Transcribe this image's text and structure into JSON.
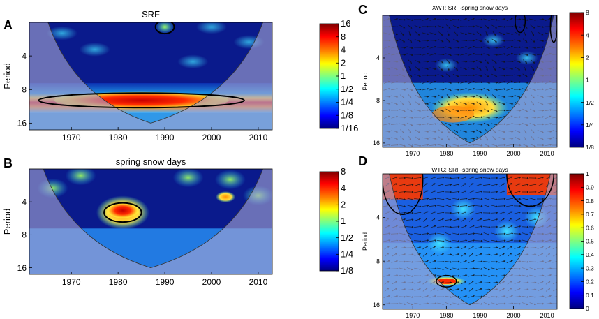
{
  "colors": {
    "coi_shade": "#a4a4d2",
    "deep_blue": "#0a1a8c",
    "sig_contour": "#000000",
    "arrow": "#111111",
    "colorbar_stops": [
      "#00007f",
      "#0000ff",
      "#0080ff",
      "#00ffff",
      "#80ff80",
      "#ffff00",
      "#ff8000",
      "#ff0000",
      "#7f0000"
    ]
  },
  "chart_data": [
    {
      "panel_letter": "A",
      "type": "heatmap",
      "subtype": "continuous wavelet transform",
      "title": "SRF",
      "ylabel": "Period",
      "xlabel": "",
      "xlim": [
        1961,
        2013
      ],
      "ylim_period_log2": [
        1,
        4.2
      ],
      "xticks": [
        "1970",
        "1980",
        "1990",
        "2000",
        "2010"
      ],
      "xtick_values": [
        1970,
        1980,
        1990,
        2000,
        2010
      ],
      "yticks": [
        "4",
        "8",
        "16"
      ],
      "ytick_values": [
        4,
        8,
        16
      ],
      "colorbar": [
        "16",
        "8",
        "4",
        "2",
        "1",
        "1/2",
        "1/4",
        "1/8",
        "1/16"
      ],
      "significant_regions": [
        {
          "year_center": 1990,
          "period": 2.2,
          "year_halfwidth": 2,
          "period_range": [
            1.9,
            2.5
          ]
        },
        {
          "year_center": 1985,
          "period": 10,
          "year_halfwidth": 22,
          "period_range": [
            8.5,
            11.5
          ]
        }
      ],
      "cone_of_influence": {
        "start_year": 1965,
        "end_year": 2011,
        "bottom_year": 1987,
        "max_period": 16
      }
    },
    {
      "panel_letter": "B",
      "type": "heatmap",
      "subtype": "continuous wavelet transform",
      "title": "spring snow days",
      "ylabel": "Period",
      "xlabel": "",
      "xlim": [
        1961,
        2013
      ],
      "ylim_period_log2": [
        1,
        4.2
      ],
      "xticks": [
        "1970",
        "1980",
        "1990",
        "2000",
        "2010"
      ],
      "xtick_values": [
        1970,
        1980,
        1990,
        2000,
        2010
      ],
      "yticks": [
        "4",
        "8",
        "16"
      ],
      "ytick_values": [
        4,
        8,
        16
      ],
      "colorbar": [
        "8",
        "4",
        "2",
        "1",
        "1/2",
        "1/4",
        "1/8"
      ],
      "significant_regions": [
        {
          "year_center": 1981,
          "period": 5,
          "year_halfwidth": 4,
          "period_range": [
            4,
            6
          ]
        }
      ],
      "cone_of_influence": {
        "start_year": 1964,
        "end_year": 2011,
        "bottom_year": 1987,
        "max_period": 16
      }
    },
    {
      "panel_letter": "C",
      "type": "heatmap",
      "subtype": "cross wavelet transform",
      "title": "XWT: SRF-spring snow days",
      "ylabel": "Period",
      "xlabel": "",
      "xlim": [
        1961,
        2013
      ],
      "ylim_period_log2": [
        1,
        4.1
      ],
      "xticks": [
        "1970",
        "1980",
        "1990",
        "2000",
        "2010"
      ],
      "xtick_values": [
        1970,
        1980,
        1990,
        2000,
        2010
      ],
      "yticks": [
        "4",
        "8",
        "16"
      ],
      "ytick_values": [
        4,
        8,
        16
      ],
      "colorbar": [
        "8",
        "4",
        "2",
        "1",
        "1/2",
        "1/4",
        "1/8"
      ],
      "significant_regions": [
        {
          "year_center": 2002,
          "period": 2.2,
          "year_halfwidth": 1.5,
          "period_range": [
            1.8,
            2.6
          ]
        },
        {
          "year_center": 2012,
          "period": 2.4,
          "year_halfwidth": 1,
          "period_range": [
            1.8,
            3
          ]
        }
      ],
      "phase_arrows": "present",
      "cone_of_influence": {
        "start_year": 1963,
        "end_year": 2012,
        "bottom_year": 1987,
        "max_period": 16
      }
    },
    {
      "panel_letter": "D",
      "type": "heatmap",
      "subtype": "wavelet coherence",
      "title": "WTC: SRF-spring snow days",
      "ylabel": "Period",
      "xlabel": "",
      "xlim": [
        1961,
        2013
      ],
      "ylim_period_log2": [
        1,
        4.1
      ],
      "xticks": [
        "1970",
        "1980",
        "1990",
        "2000",
        "2010"
      ],
      "xtick_values": [
        1970,
        1980,
        1990,
        2000,
        2010
      ],
      "yticks": [
        "4",
        "8",
        "16"
      ],
      "ytick_values": [
        4,
        8,
        16
      ],
      "colorbar": [
        "1",
        "0.9",
        "0.8",
        "0.7",
        "0.6",
        "0.5",
        "0.4",
        "0.3",
        "0.2",
        "0.1",
        "0"
      ],
      "significant_regions": [
        {
          "year_center": 1967,
          "period": 2.2,
          "year_halfwidth": 6,
          "period_range": [
            1,
            3
          ]
        },
        {
          "year_center": 2005,
          "period": 2,
          "year_halfwidth": 7,
          "period_range": [
            1,
            2.8
          ]
        },
        {
          "year_center": 1980,
          "period": 11,
          "year_halfwidth": 3,
          "period_range": [
            10,
            12
          ]
        }
      ],
      "phase_arrows": "present",
      "cone_of_influence": {
        "start_year": 1963,
        "end_year": 2011,
        "bottom_year": 1987,
        "max_period": 16
      }
    }
  ]
}
